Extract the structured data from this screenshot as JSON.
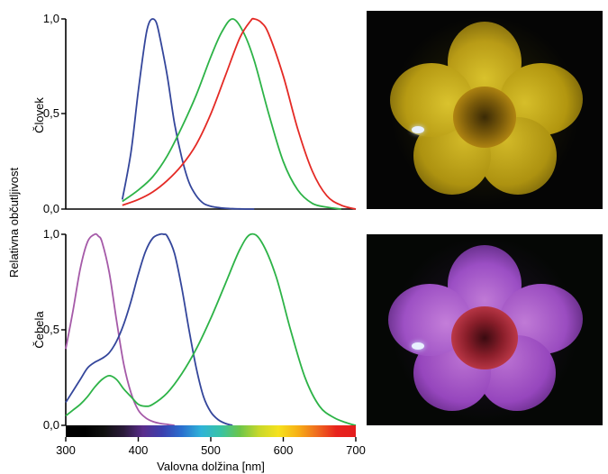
{
  "chart_data": [
    {
      "type": "line",
      "ylabel": "Človek",
      "yticks": [
        "1,0",
        "0,5",
        "0,0"
      ],
      "xlim": [
        300,
        700
      ],
      "ylim": [
        0,
        1
      ],
      "grid": false,
      "colors": [
        "#34469b",
        "#2db347",
        "#e42a25"
      ],
      "series": [
        {
          "x": [
            378,
            390,
            400,
            410,
            415,
            420,
            425,
            430,
            440,
            450,
            460,
            470,
            480,
            490,
            500,
            510,
            520,
            530,
            540,
            550,
            560
          ],
          "y": [
            0.05,
            0.3,
            0.62,
            0.9,
            0.98,
            1.0,
            0.98,
            0.9,
            0.7,
            0.45,
            0.27,
            0.14,
            0.07,
            0.03,
            0.015,
            0.008,
            0.004,
            0.002,
            0.001,
            0.0,
            0.0
          ]
        },
        {
          "x": [
            378,
            400,
            420,
            440,
            460,
            480,
            500,
            515,
            530,
            545,
            560,
            580,
            600,
            620,
            640,
            660,
            680
          ],
          "y": [
            0.04,
            0.1,
            0.17,
            0.28,
            0.43,
            0.6,
            0.8,
            0.93,
            1.0,
            0.93,
            0.78,
            0.5,
            0.25,
            0.1,
            0.03,
            0.01,
            0.0
          ]
        },
        {
          "x": [
            378,
            400,
            420,
            440,
            460,
            480,
            500,
            520,
            540,
            555,
            560,
            570,
            580,
            600,
            620,
            640,
            660,
            680,
            700
          ],
          "y": [
            0.02,
            0.05,
            0.09,
            0.15,
            0.23,
            0.34,
            0.5,
            0.7,
            0.9,
            0.99,
            1.0,
            0.98,
            0.92,
            0.7,
            0.42,
            0.2,
            0.07,
            0.02,
            0.0
          ]
        }
      ]
    },
    {
      "type": "line",
      "ylabel": "Čebela",
      "yticks": [
        "1,0",
        "0,5",
        "0,0"
      ],
      "xticks": [
        "300",
        "400",
        "500",
        "600",
        "700"
      ],
      "xlabel": "Valovna dolžina [nm]",
      "xlim": [
        300,
        700
      ],
      "ylim": [
        0,
        1
      ],
      "grid": false,
      "colors": [
        "#a55aa8",
        "#34469b",
        "#2db347"
      ],
      "series": [
        {
          "x": [
            300,
            310,
            320,
            330,
            340,
            345,
            350,
            360,
            370,
            380,
            390,
            400,
            410,
            420,
            430,
            440,
            450
          ],
          "y": [
            0.4,
            0.6,
            0.82,
            0.96,
            1.0,
            0.99,
            0.96,
            0.8,
            0.55,
            0.32,
            0.17,
            0.08,
            0.04,
            0.02,
            0.01,
            0.005,
            0.0
          ]
        },
        {
          "x": [
            300,
            310,
            320,
            330,
            340,
            350,
            360,
            370,
            380,
            390,
            400,
            410,
            420,
            430,
            435,
            440,
            450,
            460,
            470,
            480,
            490,
            500,
            510,
            520,
            530
          ],
          "y": [
            0.12,
            0.18,
            0.24,
            0.3,
            0.33,
            0.35,
            0.38,
            0.44,
            0.53,
            0.65,
            0.79,
            0.91,
            0.98,
            1.0,
            1.0,
            0.99,
            0.9,
            0.72,
            0.5,
            0.3,
            0.15,
            0.07,
            0.03,
            0.01,
            0.0
          ]
        },
        {
          "x": [
            300,
            310,
            320,
            330,
            340,
            350,
            360,
            370,
            380,
            390,
            400,
            410,
            420,
            440,
            460,
            480,
            500,
            520,
            540,
            555,
            570,
            590,
            610,
            630,
            650,
            670,
            690,
            700
          ],
          "y": [
            0.05,
            0.08,
            0.11,
            0.15,
            0.2,
            0.24,
            0.26,
            0.24,
            0.19,
            0.15,
            0.11,
            0.1,
            0.11,
            0.17,
            0.27,
            0.4,
            0.56,
            0.74,
            0.92,
            1.0,
            0.96,
            0.78,
            0.5,
            0.25,
            0.1,
            0.04,
            0.01,
            0.0
          ]
        }
      ]
    }
  ],
  "shared_ylabel": "Relativna občutljivost",
  "spectrum_colors": [
    "#000000",
    "#000000",
    "#101010",
    "#2a1a3a",
    "#5a2d8c",
    "#3b3fae",
    "#2a6fcf",
    "#2fb3d8",
    "#37c3a6",
    "#6cc54a",
    "#c8d82a",
    "#f6e21d",
    "#f7b016",
    "#ef6b1f",
    "#e8231d",
    "#e41d1d"
  ]
}
